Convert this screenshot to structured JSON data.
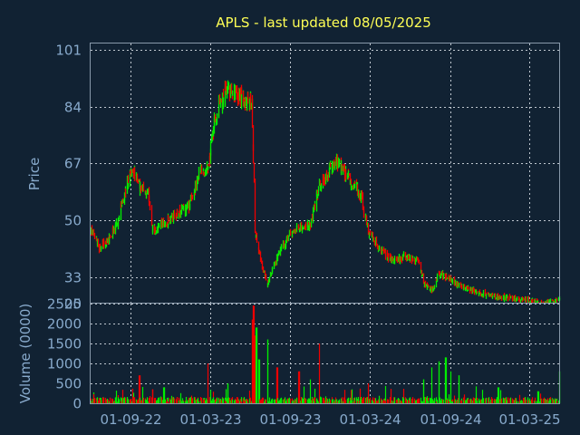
{
  "chart_data": [
    {
      "type": "candlestick",
      "title": "APLS - last updated 08/05/2025",
      "ylabel": "Price",
      "y_ticks": [
        101,
        84,
        67,
        50,
        33,
        25
      ],
      "ylim": [
        25,
        103
      ],
      "x_ticks": [
        "01-09-22",
        "01-03-23",
        "01-09-23",
        "01-03-24",
        "01-09-24",
        "01-03-25"
      ],
      "x_range": [
        "2022-06-01",
        "2025-05-08"
      ],
      "grid": true,
      "up_color": "#00ee00",
      "down_color": "#ee0000",
      "trend": [
        [
          "2022-06-01",
          47
        ],
        [
          "2022-06-20",
          42
        ],
        [
          "2022-07-10",
          44
        ],
        [
          "2022-08-01",
          49
        ],
        [
          "2022-08-20",
          60
        ],
        [
          "2022-09-05",
          66
        ],
        [
          "2022-09-20",
          60
        ],
        [
          "2022-10-10",
          58
        ],
        [
          "2022-10-20",
          47
        ],
        [
          "2022-11-15",
          49
        ],
        [
          "2022-12-15",
          52
        ],
        [
          "2023-01-10",
          54
        ],
        [
          "2023-02-05",
          65
        ],
        [
          "2023-02-25",
          65
        ],
        [
          "2023-03-05",
          76
        ],
        [
          "2023-03-20",
          84
        ],
        [
          "2023-04-10",
          90
        ],
        [
          "2023-05-01",
          88
        ],
        [
          "2023-05-20",
          86
        ],
        [
          "2023-06-05",
          85
        ],
        [
          "2023-06-12",
          46
        ],
        [
          "2023-06-25",
          37
        ],
        [
          "2023-07-10",
          31
        ],
        [
          "2023-08-01",
          39
        ],
        [
          "2023-08-25",
          45
        ],
        [
          "2023-09-20",
          48
        ],
        [
          "2023-10-15",
          48
        ],
        [
          "2023-11-05",
          60
        ],
        [
          "2023-12-01",
          65
        ],
        [
          "2023-12-15",
          68
        ],
        [
          "2024-01-10",
          63
        ],
        [
          "2024-02-10",
          57
        ],
        [
          "2024-02-25",
          47
        ],
        [
          "2024-03-20",
          42
        ],
        [
          "2024-04-20",
          38
        ],
        [
          "2024-05-20",
          39
        ],
        [
          "2024-06-20",
          38
        ],
        [
          "2024-07-01",
          31
        ],
        [
          "2024-07-20",
          29
        ],
        [
          "2024-08-05",
          34
        ],
        [
          "2024-08-25",
          33
        ],
        [
          "2024-09-10",
          31
        ],
        [
          "2024-10-01",
          30
        ],
        [
          "2024-11-10",
          28
        ],
        [
          "2024-12-20",
          27
        ],
        [
          "2025-03-01",
          26
        ],
        [
          "2025-04-01",
          25
        ],
        [
          "2025-05-08",
          26
        ]
      ]
    },
    {
      "type": "bar",
      "ylabel": "Volume (0000)",
      "y_ticks": [
        2500,
        2000,
        1500,
        1000,
        500,
        0
      ],
      "ylim": [
        0,
        2500
      ],
      "spikes": [
        [
          "2022-09-20",
          700,
          "down"
        ],
        [
          "2022-10-20",
          350,
          "down"
        ],
        [
          "2022-11-15",
          400,
          "up"
        ],
        [
          "2023-02-25",
          1000,
          "down"
        ],
        [
          "2023-04-10",
          500,
          "up"
        ],
        [
          "2023-06-05",
          2100,
          "down"
        ],
        [
          "2023-06-08",
          2450,
          "down"
        ],
        [
          "2023-06-12",
          1700,
          "down"
        ],
        [
          "2023-06-15",
          1900,
          "up"
        ],
        [
          "2023-06-20",
          1100,
          "up"
        ],
        [
          "2023-07-10",
          1600,
          "up"
        ],
        [
          "2023-08-01",
          900,
          "down"
        ],
        [
          "2023-09-20",
          800,
          "down"
        ],
        [
          "2023-10-15",
          600,
          "up"
        ],
        [
          "2023-11-05",
          1500,
          "down"
        ],
        [
          "2024-02-25",
          500,
          "down"
        ],
        [
          "2024-07-01",
          600,
          "up"
        ],
        [
          "2024-07-20",
          900,
          "up"
        ],
        [
          "2024-08-05",
          1050,
          "up"
        ],
        [
          "2024-08-20",
          1150,
          "up"
        ],
        [
          "2024-09-01",
          800,
          "up"
        ],
        [
          "2024-09-20",
          700,
          "up"
        ],
        [
          "2024-12-20",
          400,
          "up"
        ],
        [
          "2025-03-20",
          300,
          "up"
        ],
        [
          "2025-05-08",
          800,
          "up"
        ]
      ]
    }
  ]
}
